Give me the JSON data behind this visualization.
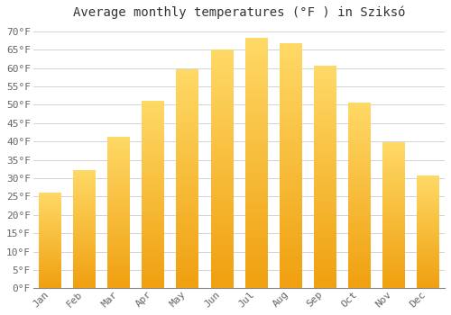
{
  "title": "Average monthly temperatures (°F ) in Sziksó",
  "months": [
    "Jan",
    "Feb",
    "Mar",
    "Apr",
    "May",
    "Jun",
    "Jul",
    "Aug",
    "Sep",
    "Oct",
    "Nov",
    "Dec"
  ],
  "values": [
    26,
    32,
    41,
    51,
    59.5,
    65,
    68,
    66.5,
    60.5,
    50.5,
    39.5,
    30.5
  ],
  "bar_color_top": "#FFD966",
  "bar_color_bottom": "#F0A010",
  "background_color": "#FFFFFF",
  "grid_color": "#CCCCCC",
  "text_color": "#666666",
  "ylim": [
    0,
    72
  ],
  "yticks": [
    0,
    5,
    10,
    15,
    20,
    25,
    30,
    35,
    40,
    45,
    50,
    55,
    60,
    65,
    70
  ],
  "title_fontsize": 10,
  "tick_fontsize": 8,
  "bar_width": 0.65
}
